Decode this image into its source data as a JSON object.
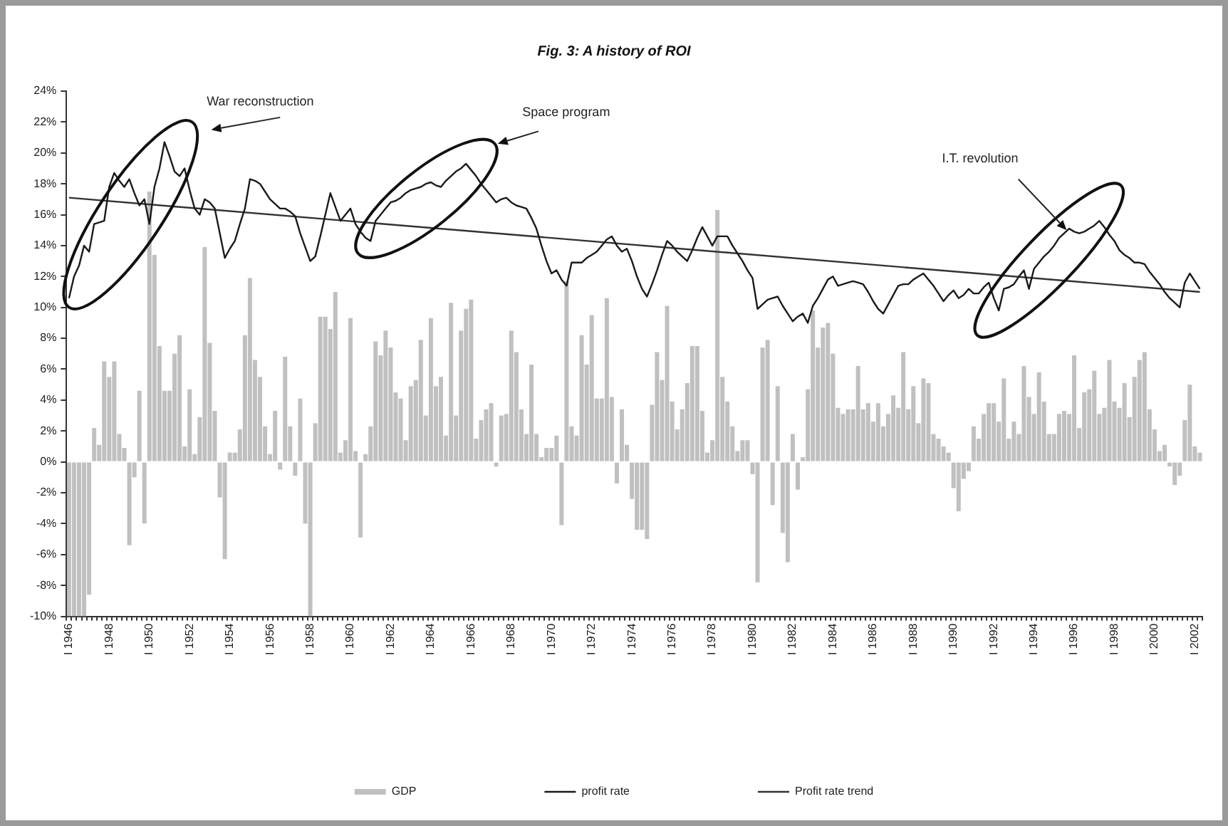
{
  "chart_data": {
    "type": "bar",
    "title": "Fig. 3: A history of ROI",
    "categories": [
      "I 1946",
      null,
      null,
      null,
      null,
      null,
      null,
      null,
      "I 1948",
      null,
      null,
      null,
      null,
      null,
      null,
      null,
      "I 1950",
      null,
      null,
      null,
      null,
      null,
      null,
      null,
      "I 1952",
      null,
      null,
      null,
      null,
      null,
      null,
      null,
      "I 1954",
      null,
      null,
      null,
      null,
      null,
      null,
      null,
      "I 1956",
      null,
      null,
      null,
      null,
      null,
      null,
      null,
      "I 1958",
      null,
      null,
      null,
      null,
      null,
      null,
      null,
      "I 1960",
      null,
      null,
      null,
      null,
      null,
      null,
      null,
      "I 1962",
      null,
      null,
      null,
      null,
      null,
      null,
      null,
      "I 1964",
      null,
      null,
      null,
      null,
      null,
      null,
      null,
      "I 1966",
      null,
      null,
      null,
      null,
      null,
      null,
      null,
      "I 1968",
      null,
      null,
      null,
      null,
      null,
      null,
      null,
      "I 1970",
      null,
      null,
      null,
      null,
      null,
      null,
      null,
      "I 1972",
      null,
      null,
      null,
      null,
      null,
      null,
      null,
      "I 1974",
      null,
      null,
      null,
      null,
      null,
      null,
      null,
      "I 1976",
      null,
      null,
      null,
      null,
      null,
      null,
      null,
      "I 1978",
      null,
      null,
      null,
      null,
      null,
      null,
      null,
      "I 1980",
      null,
      null,
      null,
      null,
      null,
      null,
      null,
      "I 1982",
      null,
      null,
      null,
      null,
      null,
      null,
      null,
      "I 1984",
      null,
      null,
      null,
      null,
      null,
      null,
      null,
      "I 1986",
      null,
      null,
      null,
      null,
      null,
      null,
      null,
      "I 1988",
      null,
      null,
      null,
      null,
      null,
      null,
      null,
      "I 1990",
      null,
      null,
      null,
      null,
      null,
      null,
      null,
      "I 1992",
      null,
      null,
      null,
      null,
      null,
      null,
      null,
      "I 1994",
      null,
      null,
      null,
      null,
      null,
      null,
      null,
      "I 1996",
      null,
      null,
      null,
      null,
      null,
      null,
      null,
      "I 1998",
      null,
      null,
      null,
      null,
      null,
      null,
      null,
      "I 2000",
      null,
      null,
      null,
      null,
      null,
      null,
      null,
      "I 2002",
      null
    ],
    "series": [
      {
        "name": "GDP",
        "type": "bar",
        "color": "#c0c0c0",
        "values": [
          -10,
          -10,
          -10,
          -10,
          -8.6,
          2.2,
          1.1,
          6.5,
          5.5,
          6.5,
          1.8,
          0.9,
          -5.4,
          -1.0,
          4.6,
          -4.0,
          17.5,
          13.4,
          7.5,
          4.6,
          4.6,
          7.0,
          8.2,
          1.0,
          4.7,
          0.5,
          2.9,
          13.9,
          7.7,
          3.3,
          -2.3,
          -6.3,
          0.6,
          0.6,
          2.1,
          8.2,
          11.9,
          6.6,
          5.5,
          2.3,
          0.5,
          3.3,
          -0.5,
          6.8,
          2.3,
          -0.9,
          4.1,
          -4.0,
          -10,
          2.5,
          9.4,
          9.4,
          8.6,
          11.0,
          0.6,
          1.4,
          9.3,
          0.7,
          -4.9,
          0.5,
          2.3,
          7.8,
          6.9,
          8.5,
          7.4,
          4.5,
          4.1,
          1.4,
          4.9,
          5.3,
          7.9,
          3.0,
          9.3,
          4.9,
          5.5,
          1.7,
          10.3,
          3.0,
          8.5,
          9.9,
          10.5,
          1.5,
          2.7,
          3.4,
          3.8,
          -0.3,
          3.0,
          3.1,
          8.5,
          7.1,
          3.4,
          1.8,
          6.3,
          1.8,
          0.3,
          0.9,
          0.9,
          1.7,
          -4.1,
          11.7,
          2.3,
          1.7,
          8.2,
          6.3,
          9.5,
          4.1,
          4.1,
          10.6,
          4.2,
          -1.4,
          3.4,
          1.1,
          -2.4,
          -4.4,
          -4.4,
          -5.0,
          3.7,
          7.1,
          5.3,
          10.1,
          3.9,
          2.1,
          3.4,
          5.1,
          7.5,
          7.5,
          3.3,
          0.6,
          1.4,
          16.3,
          5.5,
          3.9,
          2.3,
          0.7,
          1.4,
          1.4,
          -0.8,
          -7.8,
          7.4,
          7.9,
          -2.8,
          4.9,
          -4.6,
          -6.5,
          1.8,
          -1.8,
          0.3,
          4.7,
          9.8,
          7.4,
          8.7,
          9.0,
          7.0,
          3.5,
          3.1,
          3.4,
          3.4,
          6.2,
          3.4,
          3.8,
          2.6,
          3.8,
          2.3,
          3.1,
          4.3,
          3.5,
          7.1,
          3.4,
          4.9,
          2.5,
          5.4,
          5.1,
          1.8,
          1.5,
          1.0,
          0.6,
          -1.7,
          -3.2,
          -1.1,
          -0.6,
          2.3,
          1.5,
          3.1,
          3.8,
          3.8,
          2.6,
          5.4,
          1.5,
          2.6,
          1.8,
          6.2,
          4.2,
          3.1,
          5.8,
          3.9,
          1.8,
          1.8,
          3.1,
          3.3,
          3.1,
          6.9,
          2.2,
          4.5,
          4.7,
          5.9,
          3.1,
          3.5,
          6.6,
          3.9,
          3.5,
          5.1,
          2.9,
          5.5,
          6.6,
          7.1,
          3.4,
          2.1,
          0.7,
          1.1,
          -0.3,
          -1.5,
          -0.9,
          2.7,
          5.0,
          1.0,
          0.6
        ]
      },
      {
        "name": "profit rate",
        "type": "line",
        "color": "#1a1a1a",
        "values": [
          10.6,
          12.0,
          12.7,
          14.0,
          13.6,
          15.4,
          15.5,
          15.6,
          17.8,
          18.7,
          18.2,
          17.8,
          18.3,
          17.4,
          16.6,
          17.0,
          15.4,
          17.8,
          19.0,
          20.7,
          19.8,
          18.8,
          18.5,
          19.0,
          17.6,
          16.4,
          16.0,
          17.0,
          16.8,
          16.4,
          14.8,
          13.2,
          13.8,
          14.3,
          15.4,
          16.4,
          18.3,
          18.2,
          18.0,
          17.5,
          17.0,
          16.7,
          16.4,
          16.4,
          16.2,
          15.9,
          14.8,
          13.9,
          13.0,
          13.3,
          14.6,
          16.0,
          17.4,
          16.5,
          15.6,
          16.0,
          16.4,
          15.4,
          14.9,
          14.5,
          14.3,
          15.6,
          16.0,
          16.4,
          16.8,
          16.9,
          17.1,
          17.4,
          17.6,
          17.7,
          17.8,
          18.0,
          18.1,
          17.9,
          17.8,
          18.2,
          18.5,
          18.8,
          19.0,
          19.3,
          18.9,
          18.5,
          18.0,
          17.6,
          17.2,
          16.8,
          17.0,
          17.1,
          16.8,
          16.6,
          16.5,
          16.4,
          15.8,
          15.1,
          14.0,
          13.0,
          12.2,
          12.4,
          11.8,
          11.4,
          12.9,
          12.9,
          12.9,
          13.2,
          13.4,
          13.6,
          14.0,
          14.4,
          14.6,
          14.0,
          13.6,
          13.8,
          13.0,
          12.0,
          11.2,
          10.7,
          11.5,
          12.4,
          13.4,
          14.3,
          14.0,
          13.6,
          13.3,
          13.0,
          13.7,
          14.5,
          15.2,
          14.6,
          14.0,
          14.6,
          14.6,
          14.6,
          14.0,
          13.5,
          13.0,
          12.4,
          11.9,
          9.9,
          10.2,
          10.5,
          10.6,
          10.7,
          10.1,
          9.6,
          9.1,
          9.4,
          9.6,
          9.0,
          10.1,
          10.6,
          11.2,
          11.8,
          12.0,
          11.4,
          11.5,
          11.6,
          11.7,
          11.6,
          11.5,
          11.0,
          10.4,
          9.9,
          9.6,
          10.2,
          10.8,
          11.4,
          11.5,
          11.5,
          11.8,
          12.0,
          12.2,
          11.8,
          11.4,
          10.9,
          10.4,
          10.8,
          11.1,
          10.6,
          10.8,
          11.2,
          10.9,
          10.9,
          11.3,
          11.6,
          10.6,
          9.8,
          11.2,
          11.3,
          11.5,
          12.0,
          12.4,
          11.2,
          12.5,
          12.9,
          13.3,
          13.6,
          14.0,
          14.5,
          14.8,
          15.1,
          14.9,
          14.8,
          14.9,
          15.1,
          15.3,
          15.6,
          15.2,
          14.7,
          14.3,
          13.7,
          13.4,
          13.2,
          12.9,
          12.9,
          12.8,
          12.3,
          11.9,
          11.5,
          11.0,
          10.6,
          10.3,
          10.0,
          11.6,
          12.2,
          11.7,
          11.2
        ]
      },
      {
        "name": "Profit rate trend",
        "type": "line",
        "color": "#333333",
        "values": [
          17.1,
          null,
          null,
          null,
          null,
          null,
          null,
          null,
          null,
          null,
          null,
          null,
          null,
          null,
          null,
          null,
          null,
          null,
          null,
          null,
          null,
          null,
          null,
          null,
          null,
          null,
          null,
          null,
          null,
          null,
          null,
          null,
          null,
          null,
          null,
          null,
          null,
          null,
          null,
          null,
          null,
          null,
          null,
          null,
          null,
          null,
          null,
          null,
          null,
          null,
          null,
          null,
          null,
          null,
          null,
          null,
          null,
          null,
          null,
          null,
          null,
          null,
          null,
          null,
          null,
          null,
          null,
          null,
          null,
          null,
          null,
          null,
          null,
          null,
          null,
          null,
          null,
          null,
          null,
          null,
          null,
          null,
          null,
          null,
          null,
          null,
          null,
          null,
          null,
          null,
          null,
          null,
          null,
          null,
          null,
          null,
          null,
          null,
          null,
          null,
          null,
          null,
          null,
          null,
          null,
          null,
          null,
          null,
          null,
          null,
          null,
          null,
          null,
          null,
          null,
          null,
          null,
          null,
          null,
          null,
          null,
          null,
          null,
          null,
          null,
          null,
          null,
          null,
          null,
          null,
          null,
          null,
          null,
          null,
          null,
          null,
          null,
          null,
          null,
          null,
          null,
          null,
          null,
          null,
          null,
          null,
          null,
          null,
          null,
          null,
          null,
          null,
          null,
          null,
          null,
          null,
          null,
          null,
          null,
          null,
          null,
          null,
          null,
          null,
          null,
          null,
          null,
          null,
          null,
          null,
          null,
          null,
          null,
          null,
          null,
          null,
          null,
          null,
          null,
          null,
          null,
          null,
          null,
          null,
          null,
          null,
          null,
          null,
          null,
          null,
          null,
          null,
          null,
          null,
          null,
          null,
          null,
          null,
          null,
          null,
          null,
          null,
          null,
          null,
          null,
          null,
          null,
          null,
          null,
          null,
          null,
          null,
          null,
          null,
          null,
          null,
          null,
          null,
          null,
          null,
          null,
          null,
          null,
          null,
          null,
          11.0
        ]
      }
    ],
    "ylim": [
      -10,
      24
    ],
    "yticks": [
      {
        "value": -10,
        "label": "-10%"
      },
      {
        "value": -8,
        "label": "-8%"
      },
      {
        "value": -6,
        "label": "-6%"
      },
      {
        "value": -4,
        "label": "-4%"
      },
      {
        "value": -2,
        "label": "-2%"
      },
      {
        "value": 0,
        "label": "0%"
      },
      {
        "value": 2,
        "label": "2%"
      },
      {
        "value": 4,
        "label": "4%"
      },
      {
        "value": 6,
        "label": "6%"
      },
      {
        "value": 8,
        "label": "8%"
      },
      {
        "value": 10,
        "label": "10%"
      },
      {
        "value": 12,
        "label": "12%"
      },
      {
        "value": 14,
        "label": "14%"
      },
      {
        "value": 16,
        "label": "16%"
      },
      {
        "value": 18,
        "label": "18%"
      },
      {
        "value": 20,
        "label": "20%"
      },
      {
        "value": 22,
        "label": "22%"
      },
      {
        "value": 24,
        "label": "24%"
      }
    ],
    "legend": "bottom",
    "annotations": [
      "War reconstruction",
      "Space program",
      "I.T. revolution"
    ]
  }
}
